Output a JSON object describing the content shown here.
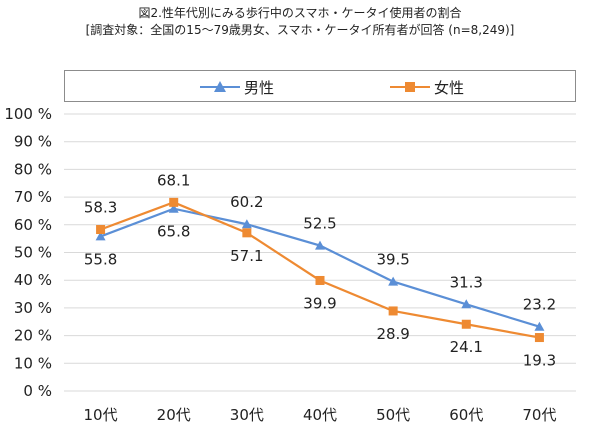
{
  "chart_data": {
    "type": "line",
    "title": "図2.性年代別にみる歩行中のスマホ・ケータイ使用者の割合",
    "subtitle": "[調査対象：全国の15～79歳男女、スマホ・ケータイ所有者が回答 (n=8,249)]",
    "categories": [
      "10代",
      "20代",
      "30代",
      "40代",
      "50代",
      "60代",
      "70代"
    ],
    "ylim": [
      0,
      100
    ],
    "yticks": [
      "0 %",
      "10 %",
      "20 %",
      "30 %",
      "40 %",
      "50 %",
      "60 %",
      "70 %",
      "80 %",
      "90 %",
      "100 %"
    ],
    "legend_position": "top",
    "series": [
      {
        "name": "男性",
        "color": "#5b8fd6",
        "marker": "triangle",
        "values": [
          55.8,
          65.8,
          60.2,
          52.5,
          39.5,
          31.3,
          23.2
        ],
        "labels": [
          "55.8",
          "65.8",
          "60.2",
          "52.5",
          "39.5",
          "31.3",
          "23.2"
        ],
        "label_side": [
          "below",
          "below",
          "above",
          "above",
          "above",
          "above",
          "above"
        ]
      },
      {
        "name": "女性",
        "color": "#ee8a32",
        "marker": "square",
        "values": [
          58.3,
          68.1,
          57.1,
          39.9,
          28.9,
          24.1,
          19.3
        ],
        "labels": [
          "58.3",
          "68.1",
          "57.1",
          "39.9",
          "28.9",
          "24.1",
          "19.3"
        ],
        "label_side": [
          "above",
          "above",
          "below",
          "below",
          "below",
          "below",
          "below"
        ]
      }
    ]
  }
}
